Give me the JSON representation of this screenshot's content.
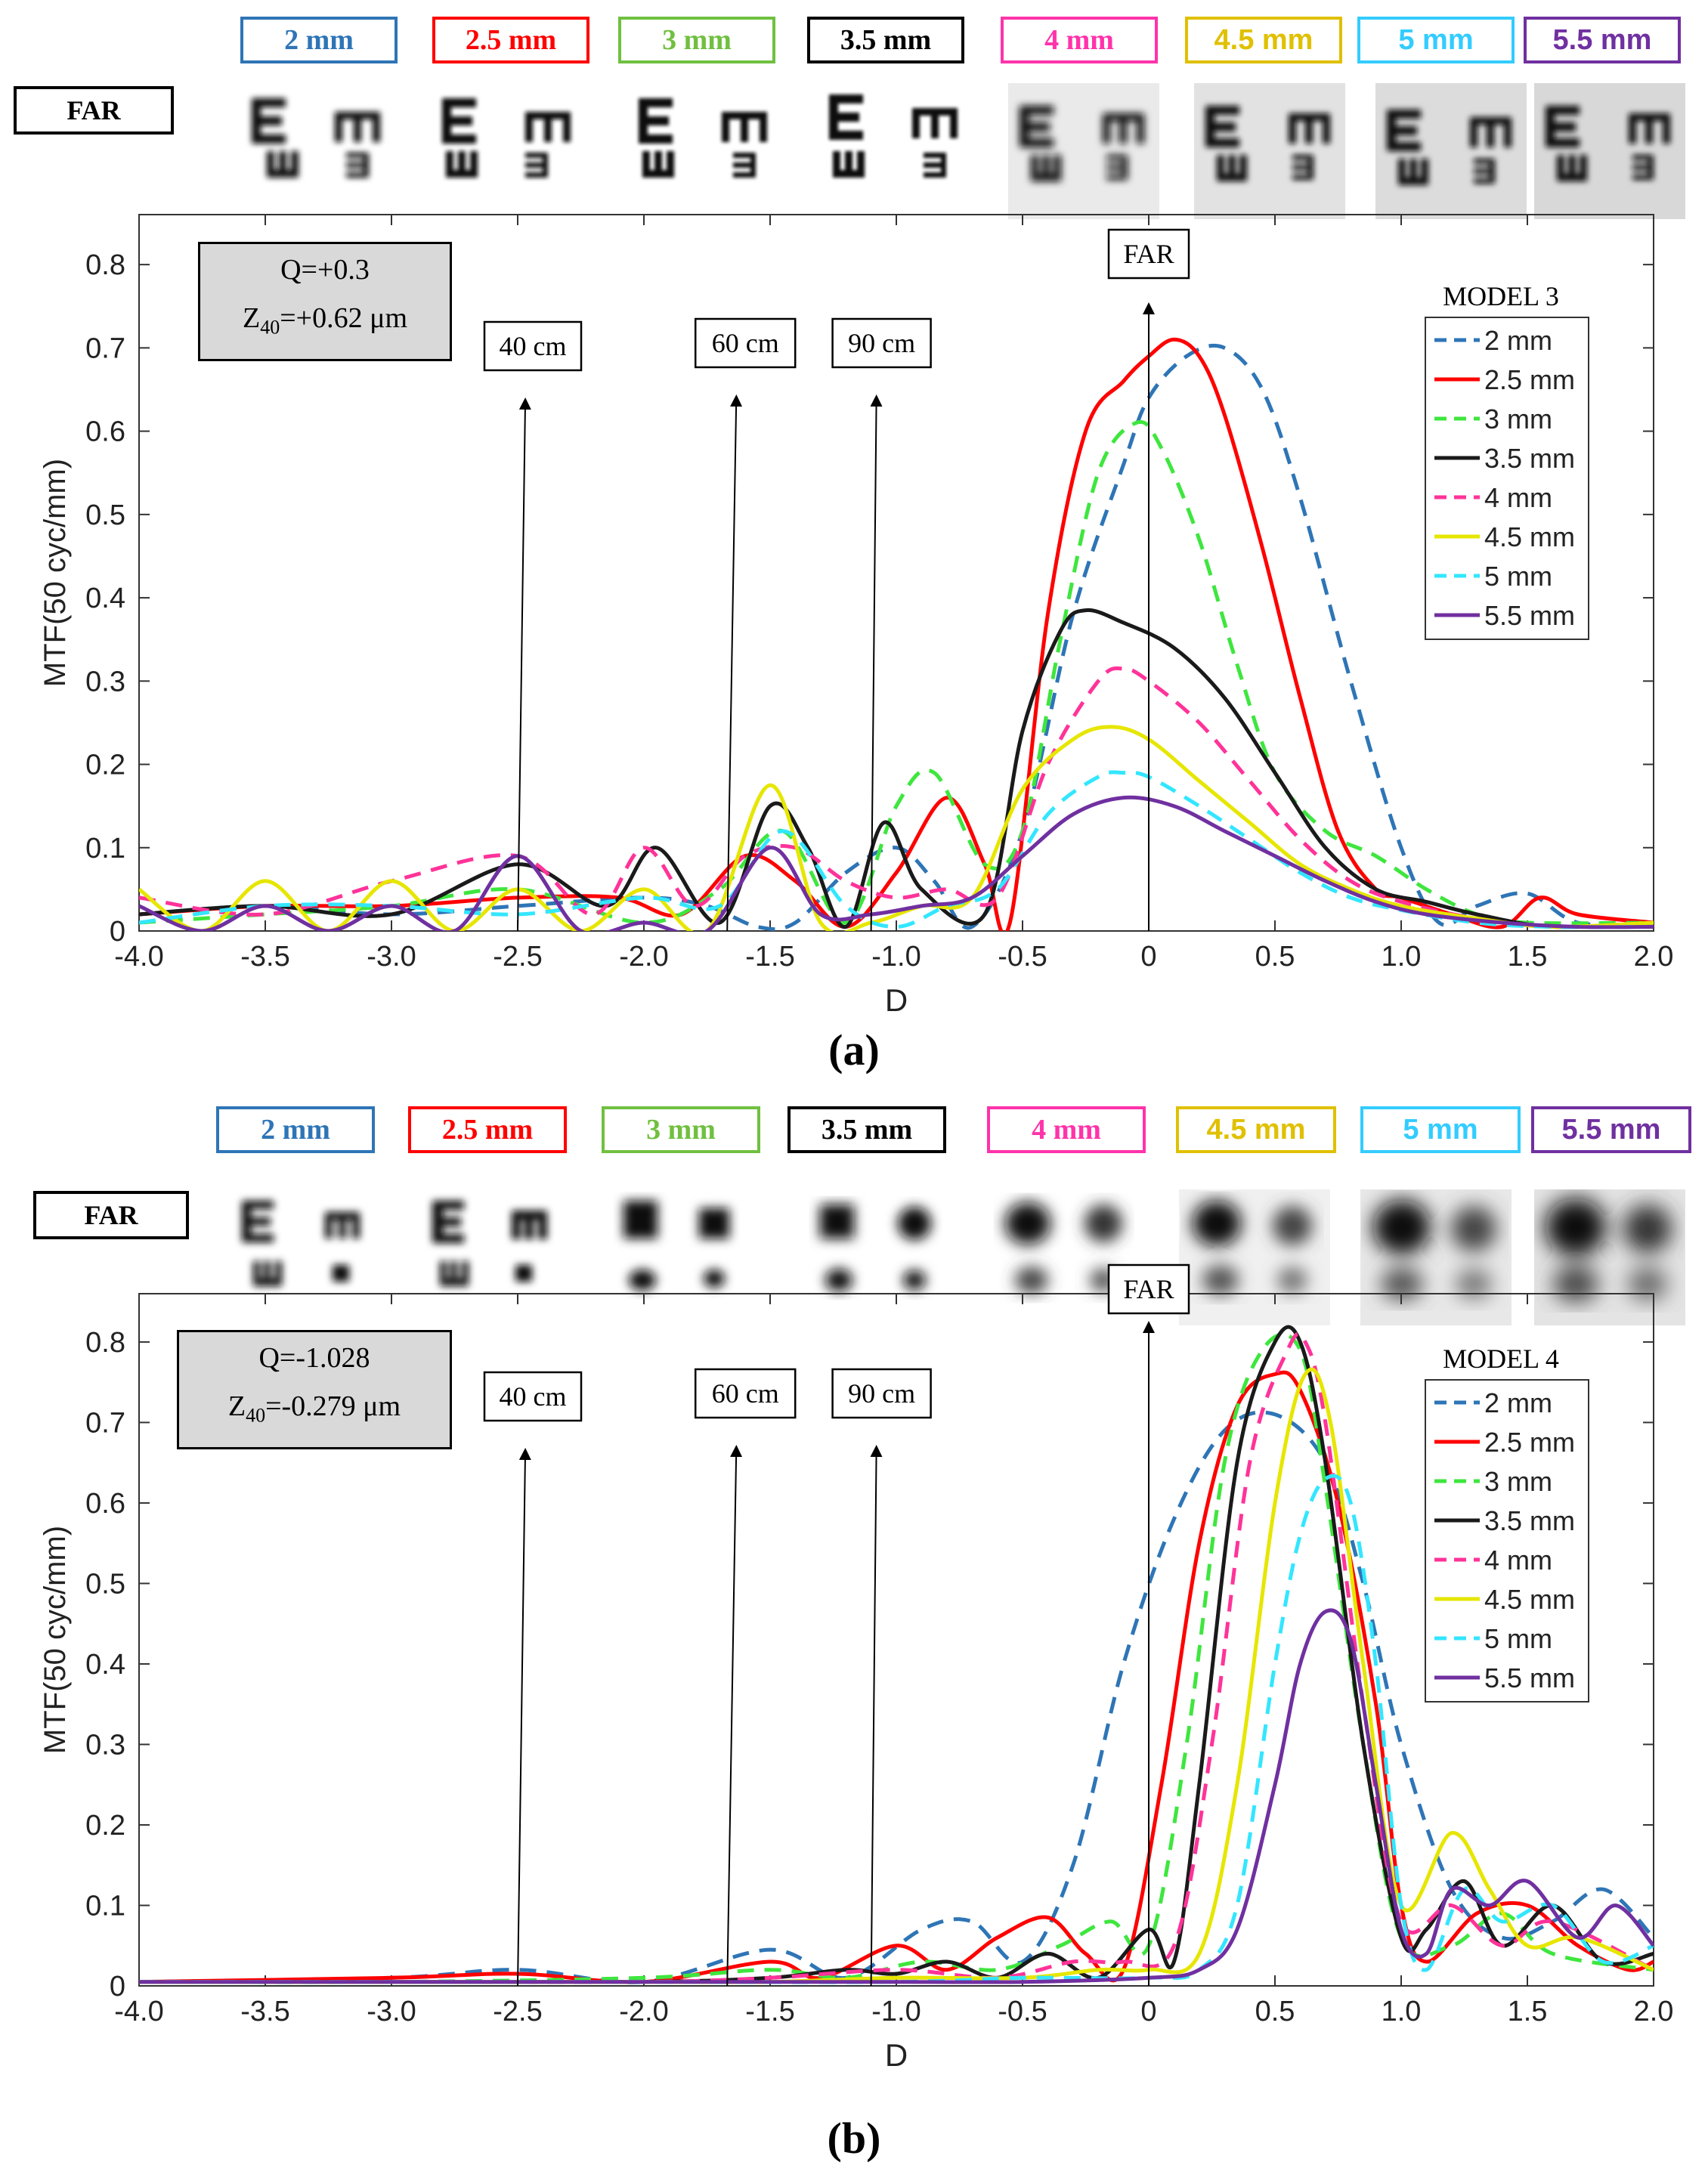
{
  "colors": {
    "2 mm": "#2e75b6",
    "2.5 mm": "#ff0000",
    "3 mm": "#3ee63e",
    "3.5 mm": "#1a1a1a",
    "4 mm": "#ff3399",
    "4.5 mm": "#e6e600",
    "5 mm": "#33e6ff",
    "5.5 mm": "#7030a0",
    "box_2mm": "#2e75b6",
    "box_25mm": "#ff0000",
    "box_3mm": "#70c040",
    "box_35mm": "#000000",
    "box_4mm": "#ff33aa",
    "box_45mm": "#e0c000",
    "box_5mm": "#33ccff",
    "box_55mm": "#7030a0",
    "qbox": "#d9d9d9"
  },
  "apertures": [
    "2 mm",
    "2.5 mm",
    "3 mm",
    "3.5 mm",
    "4 mm",
    "4.5 mm",
    "5 mm",
    "5.5 mm"
  ],
  "far_label": "FAR",
  "panel_a": {
    "label": "(a)",
    "q_line": "Q=+0.3",
    "z_prefix": "Z",
    "z_sub": "40",
    "z_value": "=+0.62  μm",
    "legend_title": "MODEL 3"
  },
  "panel_b": {
    "label": "(b)",
    "q_line": "Q=-1.028",
    "z_prefix": "Z",
    "z_sub": "40",
    "z_value": "=-0.279  μm",
    "legend_title": "MODEL 4"
  },
  "chart_data": [
    {
      "type": "line",
      "title": "MODEL 3",
      "xlabel": "D",
      "ylabel": "MTF(50 cyc/mm)",
      "xlim": [
        -4.0,
        2.0
      ],
      "ylim": [
        0,
        0.86
      ],
      "xticks": [
        "-4.0",
        "-3.5",
        "-3.0",
        "-2.5",
        "-2.0",
        "-1.5",
        "-1.0",
        "-0.5",
        "0",
        "0.5",
        "1.0",
        "1.5",
        "2.0"
      ],
      "yticks": [
        "0",
        "0.1",
        "0.2",
        "0.3",
        "0.4",
        "0.5",
        "0.6",
        "0.7",
        "0.8"
      ],
      "annotations": [
        {
          "text": "40 cm",
          "x": -2.5
        },
        {
          "text": "60 cm",
          "x": -1.67
        },
        {
          "text": "90 cm",
          "x": -1.1
        },
        {
          "text": "FAR",
          "x": 0
        }
      ],
      "series": [
        {
          "name": "2 mm",
          "style": "dashed",
          "x": [
            -4.0,
            -3.5,
            -3.0,
            -2.5,
            -2.0,
            -1.75,
            -1.55,
            -1.4,
            -1.2,
            -1.0,
            -0.85,
            -0.7,
            -0.5,
            -0.3,
            -0.1,
            0.0,
            0.15,
            0.3,
            0.45,
            0.6,
            0.8,
            1.0,
            1.15,
            1.3,
            1.5,
            1.7,
            2.0
          ],
          "values": [
            0.02,
            0.03,
            0.02,
            0.03,
            0.04,
            0.03,
            0.005,
            0.01,
            0.07,
            0.1,
            0.06,
            0.005,
            0.12,
            0.38,
            0.56,
            0.64,
            0.69,
            0.7,
            0.65,
            0.52,
            0.3,
            0.1,
            0.01,
            0.03,
            0.045,
            0.01,
            0.01
          ]
        },
        {
          "name": "2.5 mm",
          "style": "solid",
          "x": [
            -4.0,
            -3.5,
            -3.0,
            -2.5,
            -2.1,
            -1.85,
            -1.6,
            -1.4,
            -1.2,
            -1.0,
            -0.8,
            -0.65,
            -0.55,
            -0.4,
            -0.25,
            -0.1,
            0.0,
            0.1,
            0.2,
            0.3,
            0.45,
            0.6,
            0.75,
            0.9,
            1.0,
            1.2,
            1.4,
            1.55,
            1.7,
            2.0
          ],
          "values": [
            0.02,
            0.03,
            0.03,
            0.04,
            0.04,
            0.02,
            0.09,
            0.06,
            0.005,
            0.07,
            0.16,
            0.08,
            0.01,
            0.38,
            0.6,
            0.66,
            0.69,
            0.71,
            0.69,
            0.62,
            0.46,
            0.28,
            0.12,
            0.05,
            0.04,
            0.02,
            0.005,
            0.04,
            0.02,
            0.01
          ]
        },
        {
          "name": "3 mm",
          "style": "dashed",
          "x": [
            -4.0,
            -3.5,
            -3.0,
            -2.5,
            -2.0,
            -1.7,
            -1.45,
            -1.2,
            -1.0,
            -0.85,
            -0.65,
            -0.5,
            -0.35,
            -0.2,
            -0.05,
            0.05,
            0.2,
            0.35,
            0.5,
            0.7,
            0.9,
            1.1,
            1.3,
            1.5,
            2.0
          ],
          "values": [
            0.01,
            0.02,
            0.03,
            0.05,
            0.01,
            0.05,
            0.12,
            0.01,
            0.15,
            0.19,
            0.08,
            0.12,
            0.35,
            0.55,
            0.61,
            0.58,
            0.47,
            0.32,
            0.19,
            0.12,
            0.09,
            0.05,
            0.02,
            0.01,
            0.01
          ]
        },
        {
          "name": "3.5 mm",
          "style": "solid",
          "x": [
            -4.0,
            -3.5,
            -3.0,
            -2.5,
            -2.15,
            -1.95,
            -1.7,
            -1.5,
            -1.35,
            -1.2,
            -1.05,
            -0.9,
            -0.65,
            -0.5,
            -0.35,
            -0.25,
            -0.1,
            0.1,
            0.3,
            0.5,
            0.7,
            0.9,
            1.1,
            1.3,
            1.6,
            2.0
          ],
          "values": [
            0.02,
            0.03,
            0.02,
            0.08,
            0.03,
            0.1,
            0.01,
            0.15,
            0.1,
            0.005,
            0.13,
            0.05,
            0.02,
            0.24,
            0.36,
            0.385,
            0.37,
            0.34,
            0.28,
            0.19,
            0.1,
            0.05,
            0.035,
            0.02,
            0.005,
            0.01
          ]
        },
        {
          "name": "4 mm",
          "style": "dashed",
          "x": [
            -4.0,
            -3.5,
            -3.0,
            -2.5,
            -2.2,
            -2.0,
            -1.8,
            -1.6,
            -1.4,
            -1.2,
            -1.0,
            -0.8,
            -0.6,
            -0.4,
            -0.2,
            -0.1,
            0.0,
            0.2,
            0.4,
            0.6,
            0.8,
            1.0,
            1.3,
            1.6,
            2.0
          ],
          "values": [
            0.04,
            0.02,
            0.06,
            0.09,
            0.02,
            0.1,
            0.03,
            0.09,
            0.1,
            0.06,
            0.04,
            0.05,
            0.04,
            0.2,
            0.3,
            0.315,
            0.3,
            0.25,
            0.18,
            0.11,
            0.06,
            0.035,
            0.015,
            0.005,
            0.01
          ]
        },
        {
          "name": "4.5 mm",
          "style": "solid",
          "x": [
            -4.0,
            -3.75,
            -3.5,
            -3.25,
            -3.0,
            -2.75,
            -2.5,
            -2.25,
            -2.0,
            -1.75,
            -1.5,
            -1.3,
            -1.1,
            -0.9,
            -0.7,
            -0.5,
            -0.3,
            -0.15,
            0.0,
            0.2,
            0.4,
            0.6,
            0.8,
            1.0,
            1.3,
            1.6,
            2.0
          ],
          "values": [
            0.05,
            0.0,
            0.06,
            0.0,
            0.06,
            0.0,
            0.05,
            0.0,
            0.05,
            0.0,
            0.175,
            0.01,
            0.01,
            0.03,
            0.04,
            0.17,
            0.23,
            0.245,
            0.23,
            0.18,
            0.13,
            0.08,
            0.05,
            0.03,
            0.015,
            0.005,
            0.01
          ]
        },
        {
          "name": "5 mm",
          "style": "dashed",
          "x": [
            -4.0,
            -3.5,
            -3.0,
            -2.5,
            -2.0,
            -1.7,
            -1.45,
            -1.2,
            -1.0,
            -0.8,
            -0.6,
            -0.4,
            -0.2,
            -0.1,
            0.0,
            0.2,
            0.4,
            0.6,
            0.8,
            1.0,
            1.3,
            1.6,
            2.0
          ],
          "values": [
            0.01,
            0.03,
            0.03,
            0.02,
            0.04,
            0.03,
            0.12,
            0.03,
            0.005,
            0.03,
            0.05,
            0.14,
            0.185,
            0.19,
            0.185,
            0.15,
            0.11,
            0.07,
            0.04,
            0.025,
            0.01,
            0.005,
            0.005
          ]
        },
        {
          "name": "5.5 mm",
          "style": "solid",
          "x": [
            -4.0,
            -3.75,
            -3.5,
            -3.25,
            -3.0,
            -2.75,
            -2.5,
            -2.25,
            -2.0,
            -1.75,
            -1.5,
            -1.3,
            -1.1,
            -0.9,
            -0.7,
            -0.5,
            -0.3,
            -0.1,
            0.1,
            0.3,
            0.5,
            0.7,
            0.9,
            1.1,
            1.4,
            1.7,
            2.0
          ],
          "values": [
            0.03,
            0.0,
            0.03,
            0.0,
            0.03,
            0.0,
            0.09,
            0.0,
            0.01,
            0.0,
            0.1,
            0.02,
            0.02,
            0.03,
            0.04,
            0.09,
            0.14,
            0.16,
            0.15,
            0.12,
            0.09,
            0.06,
            0.035,
            0.02,
            0.01,
            0.005,
            0.005
          ]
        }
      ]
    },
    {
      "type": "line",
      "title": "MODEL 4",
      "xlabel": "D",
      "ylabel": "MTF(50 cyc/mm)",
      "xlim": [
        -4.0,
        2.0
      ],
      "ylim": [
        0,
        0.86
      ],
      "xticks": [
        "-4.0",
        "-3.5",
        "-3.0",
        "-2.5",
        "-2.0",
        "-1.5",
        "-1.0",
        "-0.5",
        "0",
        "0.5",
        "1.0",
        "1.5",
        "2.0"
      ],
      "yticks": [
        "0",
        "0.1",
        "0.2",
        "0.3",
        "0.4",
        "0.5",
        "0.6",
        "0.7",
        "0.8"
      ],
      "annotations": [
        {
          "text": "40 cm",
          "x": -2.5
        },
        {
          "text": "60 cm",
          "x": -1.67
        },
        {
          "text": "90 cm",
          "x": -1.1
        },
        {
          "text": "FAR",
          "x": 0
        }
      ],
      "series": [
        {
          "name": "2 mm",
          "style": "dashed",
          "x": [
            -4.0,
            -3.0,
            -2.5,
            -2.0,
            -1.5,
            -1.2,
            -0.9,
            -0.7,
            -0.5,
            -0.3,
            -0.1,
            0.1,
            0.3,
            0.5,
            0.7,
            0.85,
            1.0,
            1.2,
            1.4,
            1.6,
            1.8,
            2.0
          ],
          "values": [
            0.005,
            0.01,
            0.02,
            0.005,
            0.045,
            0.01,
            0.07,
            0.08,
            0.03,
            0.15,
            0.4,
            0.58,
            0.69,
            0.71,
            0.65,
            0.5,
            0.3,
            0.12,
            0.06,
            0.08,
            0.12,
            0.06
          ]
        },
        {
          "name": "2.5 mm",
          "style": "solid",
          "x": [
            -4.0,
            -3.0,
            -2.5,
            -2.0,
            -1.5,
            -1.3,
            -1.0,
            -0.8,
            -0.6,
            -0.4,
            -0.25,
            -0.1,
            0.05,
            0.2,
            0.35,
            0.5,
            0.6,
            0.75,
            0.9,
            1.0,
            1.1,
            1.3,
            1.5,
            1.7,
            1.9,
            2.0
          ],
          "values": [
            0.005,
            0.01,
            0.015,
            0.005,
            0.03,
            0.01,
            0.05,
            0.02,
            0.06,
            0.085,
            0.04,
            0.02,
            0.25,
            0.55,
            0.72,
            0.76,
            0.74,
            0.6,
            0.35,
            0.1,
            0.03,
            0.09,
            0.1,
            0.05,
            0.02,
            0.03
          ]
        },
        {
          "name": "3 mm",
          "style": "dashed",
          "x": [
            -4.0,
            -3.0,
            -2.0,
            -1.5,
            -1.2,
            -0.9,
            -0.6,
            -0.35,
            -0.15,
            0.0,
            0.15,
            0.3,
            0.45,
            0.6,
            0.7,
            0.85,
            1.0,
            1.2,
            1.4,
            1.6,
            2.0
          ],
          "values": [
            0.005,
            0.005,
            0.01,
            0.02,
            0.01,
            0.03,
            0.02,
            0.05,
            0.08,
            0.05,
            0.3,
            0.65,
            0.79,
            0.79,
            0.62,
            0.3,
            0.06,
            0.05,
            0.09,
            0.04,
            0.02
          ]
        },
        {
          "name": "3.5 mm",
          "style": "solid",
          "x": [
            -4.0,
            -3.0,
            -2.0,
            -1.5,
            -1.2,
            -1.0,
            -0.8,
            -0.6,
            -0.4,
            -0.2,
            0.0,
            0.1,
            0.2,
            0.35,
            0.5,
            0.6,
            0.7,
            0.85,
            1.0,
            1.1,
            1.25,
            1.4,
            1.6,
            1.8,
            2.0
          ],
          "values": [
            0.005,
            0.005,
            0.005,
            0.01,
            0.02,
            0.015,
            0.03,
            0.01,
            0.04,
            0.01,
            0.07,
            0.03,
            0.25,
            0.65,
            0.8,
            0.8,
            0.65,
            0.3,
            0.06,
            0.07,
            0.13,
            0.05,
            0.1,
            0.03,
            0.04
          ]
        },
        {
          "name": "4 mm",
          "style": "dashed",
          "x": [
            -4.0,
            -3.0,
            -2.0,
            -1.5,
            -1.0,
            -0.6,
            -0.3,
            -0.1,
            0.1,
            0.25,
            0.4,
            0.55,
            0.62,
            0.7,
            0.85,
            1.0,
            1.2,
            1.4,
            1.6,
            2.0
          ],
          "values": [
            0.005,
            0.005,
            0.005,
            0.01,
            0.02,
            0.01,
            0.03,
            0.03,
            0.05,
            0.3,
            0.65,
            0.79,
            0.8,
            0.7,
            0.35,
            0.08,
            0.1,
            0.05,
            0.08,
            0.02
          ]
        },
        {
          "name": "4.5 mm",
          "style": "solid",
          "x": [
            -4.0,
            -3.0,
            -2.0,
            -1.5,
            -1.0,
            -0.5,
            -0.2,
            0.0,
            0.2,
            0.35,
            0.5,
            0.62,
            0.72,
            0.85,
            1.0,
            1.2,
            1.35,
            1.5,
            1.7,
            2.0
          ],
          "values": [
            0.005,
            0.005,
            0.005,
            0.005,
            0.01,
            0.01,
            0.02,
            0.02,
            0.04,
            0.25,
            0.6,
            0.76,
            0.7,
            0.4,
            0.1,
            0.19,
            0.12,
            0.05,
            0.06,
            0.02
          ]
        },
        {
          "name": "5 mm",
          "style": "dashed",
          "x": [
            -4.0,
            -3.0,
            -2.0,
            -1.0,
            -0.5,
            0.0,
            0.2,
            0.35,
            0.5,
            0.6,
            0.7,
            0.8,
            0.9,
            1.0,
            1.1,
            1.25,
            1.4,
            1.6,
            1.8,
            2.0
          ],
          "values": [
            0.005,
            0.005,
            0.005,
            0.005,
            0.01,
            0.01,
            0.02,
            0.1,
            0.4,
            0.56,
            0.63,
            0.6,
            0.4,
            0.1,
            0.02,
            0.12,
            0.08,
            0.1,
            0.03,
            0.05
          ]
        },
        {
          "name": "5.5 mm",
          "style": "solid",
          "x": [
            -4.0,
            -3.0,
            -2.0,
            -1.0,
            -0.5,
            0.0,
            0.2,
            0.35,
            0.5,
            0.6,
            0.7,
            0.8,
            0.9,
            1.0,
            1.1,
            1.2,
            1.35,
            1.5,
            1.7,
            1.85,
            2.0
          ],
          "values": [
            0.005,
            0.005,
            0.005,
            0.005,
            0.005,
            0.01,
            0.02,
            0.07,
            0.25,
            0.4,
            0.465,
            0.43,
            0.25,
            0.07,
            0.04,
            0.12,
            0.1,
            0.13,
            0.06,
            0.1,
            0.05
          ]
        }
      ]
    }
  ]
}
